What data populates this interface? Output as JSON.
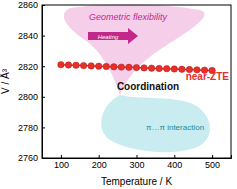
{
  "chart_data": {
    "type": "line",
    "x_label": "Temperature / K",
    "y_label": "V / Å³",
    "x": [
      100,
      120,
      140,
      160,
      180,
      200,
      220,
      240,
      260,
      280,
      300,
      320,
      340,
      360,
      380,
      400,
      420,
      440,
      460,
      480,
      500
    ],
    "values": [
      2821.0,
      2820.8,
      2820.6,
      2820.4,
      2820.2,
      2820.0,
      2819.8,
      2819.6,
      2819.4,
      2819.3,
      2819.1,
      2818.9,
      2818.7,
      2818.5,
      2818.4,
      2818.2,
      2818.0,
      2817.8,
      2817.6,
      2817.4,
      2817.2
    ],
    "color": "#e8302a",
    "marker": "circle",
    "line_style": "solid",
    "xlim": [
      50,
      550
    ],
    "xticks": [
      100,
      200,
      300,
      400,
      500
    ],
    "ylim": [
      2760,
      2860
    ],
    "yticks": [
      2760,
      2780,
      2800,
      2820,
      2840,
      2860
    ],
    "annotations": [
      "Geometric flexibility",
      "Heating",
      "Coordination",
      "near-ZTE",
      "π…π interaction"
    ]
  }
}
